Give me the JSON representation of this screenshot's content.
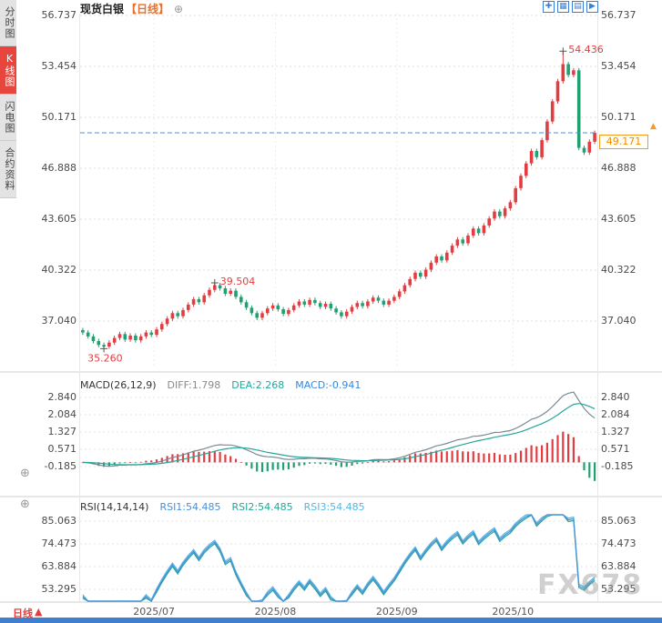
{
  "header": {
    "symbol": "现货白银",
    "period": "【日线】",
    "add_icon": "⊕"
  },
  "sidebar": {
    "tabs": [
      {
        "id": "timeshare",
        "label": "分时图",
        "active": false
      },
      {
        "id": "kline",
        "label": "K线图",
        "active": true
      },
      {
        "id": "lightning",
        "label": "闪电图",
        "active": false
      },
      {
        "id": "contract",
        "label": "合约资料",
        "active": false
      }
    ]
  },
  "toolbar": {
    "icons": [
      {
        "name": "crosshair-icon",
        "glyph": "✚"
      },
      {
        "name": "zoom-area-icon",
        "glyph": "▦"
      },
      {
        "name": "chart-type-icon",
        "glyph": "▤"
      },
      {
        "name": "jump-latest-icon",
        "glyph": "▶"
      }
    ]
  },
  "icons": {
    "panel_plus": "⊕",
    "price_arrow": "▲"
  },
  "footer": {
    "period": "日线",
    "arrow": "▲"
  },
  "watermark": "FX678",
  "colors": {
    "up": "#e23e42",
    "down": "#23a071",
    "price_line": "#4a8fd4",
    "annotation": "#e23e3e",
    "diff": "#7a8a94",
    "dea": "#26a69a",
    "rsi1": "#4a90d9",
    "rsi2": "#26a69a",
    "rsi3": "#58b6e4"
  },
  "chart_data": {
    "type": "candlestick",
    "title": "现货白银 日线",
    "main": {
      "y_labels": [
        "56.737",
        "53.454",
        "50.171",
        "46.888",
        "43.605",
        "40.322",
        "37.040"
      ],
      "first_open": 36.45,
      "closes": [
        36.3,
        36.05,
        35.75,
        35.5,
        35.4,
        35.65,
        35.95,
        36.2,
        35.85,
        36.1,
        35.8,
        36.05,
        36.3,
        36.15,
        36.5,
        36.85,
        37.2,
        37.55,
        37.35,
        37.75,
        38.1,
        38.45,
        38.25,
        38.7,
        39.05,
        39.35,
        39.15,
        38.8,
        39.0,
        38.6,
        38.25,
        37.9,
        37.55,
        37.25,
        37.55,
        37.85,
        38.05,
        37.8,
        37.5,
        37.75,
        38.05,
        38.3,
        38.1,
        38.4,
        38.2,
        37.95,
        38.15,
        37.85,
        37.6,
        37.35,
        37.65,
        37.95,
        38.2,
        38.0,
        38.3,
        38.55,
        38.35,
        38.1,
        38.35,
        38.6,
        38.95,
        39.35,
        39.75,
        40.15,
        39.9,
        40.35,
        40.8,
        41.2,
        40.95,
        41.45,
        41.9,
        42.3,
        42.05,
        42.55,
        43.0,
        42.7,
        43.2,
        43.65,
        44.1,
        43.8,
        44.3,
        44.7,
        45.6,
        46.4,
        47.2,
        48.0,
        47.6,
        48.7,
        49.9,
        51.2,
        52.5,
        53.6,
        52.9,
        53.2,
        48.2,
        47.9,
        48.6,
        49.171
      ],
      "overrides": {
        "4": {
          "low": 35.26
        },
        "25": {
          "high": 39.504
        },
        "91": {
          "high": 54.436
        }
      },
      "last_price": 49.171,
      "last_price_label": "49.171",
      "annotations": [
        {
          "text": "54.436",
          "index": 91,
          "price": 54.436,
          "anchor": "high"
        },
        {
          "text": "39.504",
          "index": 25,
          "price": 39.504,
          "anchor": "high"
        },
        {
          "text": "35.260",
          "index": 4,
          "price": 35.26,
          "anchor": "low"
        }
      ]
    },
    "x_axis": [
      {
        "text": "2025/07",
        "index": 14
      },
      {
        "text": "2025/08",
        "index": 37
      },
      {
        "text": "2025/09",
        "index": 60
      },
      {
        "text": "2025/10",
        "index": 82
      }
    ],
    "macd": {
      "title": "MACD(26,12,9)",
      "params": [
        26,
        12,
        9
      ],
      "diff_label": "DIFF:1.798",
      "dea_label": "DEA:2.268",
      "macd_label": "MACD:-0.941",
      "diff": 1.798,
      "dea": 2.268,
      "macd": -0.941,
      "y_labels": [
        "2.840",
        "2.084",
        "1.327",
        "0.571",
        "-0.185"
      ]
    },
    "rsi": {
      "title": "RSI(14,14,14)",
      "period": 14,
      "rsi1_label": "RSI1:54.485",
      "rsi2_label": "RSI2:54.485",
      "rsi3_label": "RSI3:54.485",
      "rsi1": 54.485,
      "rsi2": 54.485,
      "rsi3": 54.485,
      "y_labels": [
        "85.063",
        "74.473",
        "63.884",
        "53.295"
      ]
    }
  }
}
